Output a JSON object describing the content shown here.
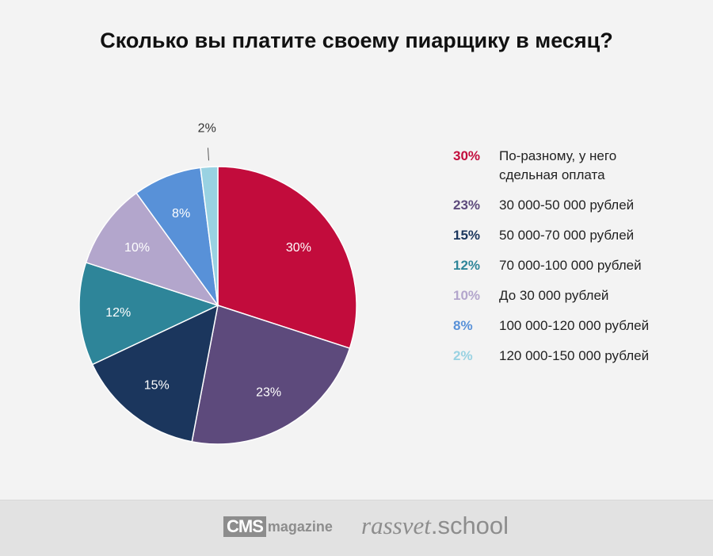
{
  "chart_data": {
    "type": "pie",
    "title": "Сколько вы платите своему пиарщику в месяц?",
    "slices": [
      {
        "label": "По-разному, у него сдельная оплата",
        "value": 30,
        "display": "30%",
        "color": "#c20c3c"
      },
      {
        "label": "30 000-50 000 рублей",
        "value": 23,
        "display": "23%",
        "color": "#5d4a7c"
      },
      {
        "label": "50 000-70 000 рублей",
        "value": 15,
        "display": "15%",
        "color": "#1b365d"
      },
      {
        "label": "70 000-100 000 рублей",
        "value": 12,
        "display": "12%",
        "color": "#2e8599"
      },
      {
        "label": "До 30 000 рублей",
        "value": 10,
        "display": "10%",
        "color": "#b3a6cc"
      },
      {
        "label": "100 000-120 000 рублей",
        "value": 8,
        "display": "8%",
        "color": "#5891d8"
      },
      {
        "label": "120 000-150 000 рублей",
        "value": 2,
        "display": "2%",
        "color": "#99d2e2"
      }
    ],
    "legend_position": "right",
    "slice_label_color": "#ffffff",
    "outside_label_color": "#333333"
  },
  "footer": {
    "cms_text": "CMS",
    "magazine_text": "magazine",
    "rassvet_text": "rassvet",
    "school_text": ".school"
  }
}
